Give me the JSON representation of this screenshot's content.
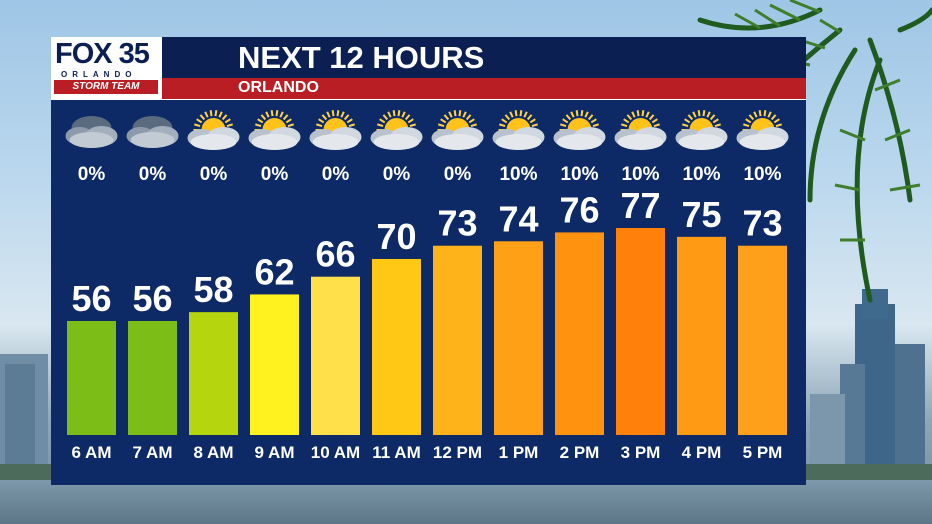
{
  "header": {
    "logo_main": "FOX 35",
    "logo_city": "ORLANDO",
    "logo_team": "STORM TEAM",
    "title": "NEXT 12 HOURS",
    "subtitle": "ORLANDO"
  },
  "colors": {
    "panel": "#0d2a66",
    "header": "#0c1f52",
    "accent_red": "#b81e24",
    "text": "#ffffff"
  },
  "chart_data": {
    "type": "bar",
    "categories": [
      "6 AM",
      "7 AM",
      "8 AM",
      "9 AM",
      "10 AM",
      "11 AM",
      "12 PM",
      "1 PM",
      "2 PM",
      "3 PM",
      "4 PM",
      "5 PM"
    ],
    "values": [
      56,
      56,
      58,
      62,
      66,
      70,
      73,
      74,
      76,
      77,
      75,
      73
    ],
    "precip_chance": [
      "0%",
      "0%",
      "0%",
      "0%",
      "0%",
      "0%",
      "0%",
      "10%",
      "10%",
      "10%",
      "10%",
      "10%"
    ],
    "conditions": [
      "cloudy-night",
      "cloudy-night",
      "partly-cloudy-day",
      "partly-cloudy-day",
      "partly-cloudy-day",
      "partly-cloudy-day",
      "partly-cloudy-day",
      "partly-cloudy-day",
      "partly-cloudy-day",
      "partly-cloudy-day",
      "partly-cloudy-day",
      "partly-cloudy-day"
    ],
    "bar_colors": [
      "#7dbd17",
      "#7dbd17",
      "#b5d60e",
      "#fff21e",
      "#ffdf4a",
      "#ffc814",
      "#ffb31a",
      "#ffa016",
      "#ff920f",
      "#ff800b",
      "#ff9a14",
      "#ffa01a"
    ],
    "ylim": [
      40,
      80
    ]
  }
}
